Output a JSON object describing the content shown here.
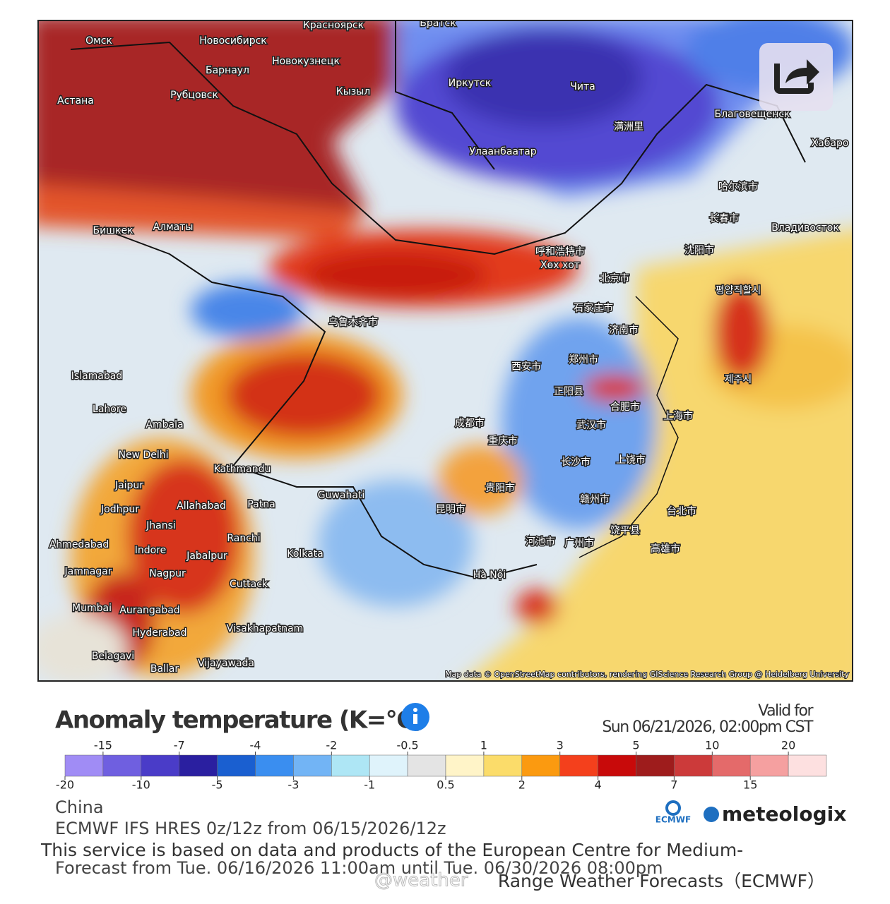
{
  "map": {
    "attribution": "Map data © OpenStreetMap contributors, rendering GIScience Research Group @ Heidelberg University",
    "places": [
      "Омск",
      "Новосибирск",
      "Красноярск",
      "Барнаул",
      "Новокузнецк",
      "Братск",
      "Астана",
      "Рубцовск",
      "Кызыл",
      "Иркутск",
      "Чита",
      "Благовещенск",
      "Улаанбаатар",
      "满洲里",
      "Хабаро",
      "哈尔滨市",
      "长春市",
      "Владивосток",
      "Бишкек",
      "Алматы",
      "呼和浩特市",
      "Хөх хот",
      "沈阳市",
      "北京市",
      "평양직할시",
      "乌鲁木齐市",
      "石家庄市",
      "济南市",
      "西安市",
      "郑州市",
      "Islamabad",
      "正阳县",
      "合肥市",
      "上海市",
      "Lahore",
      "Ambala",
      "成都市",
      "重庆市",
      "武汉市",
      "New Delhi",
      "Kathmandu",
      "长沙市",
      "上饶市",
      "Jaipur",
      "贵阳市",
      "Guwahati",
      "Jodhpur",
      "Allahabad",
      "Patna",
      "昆明市",
      "赣州市",
      "台北市",
      "Jhansi",
      "Ranchi",
      "Ahmedabad",
      "Indore",
      "河池市",
      "广州市",
      "饶平县",
      "高雄市",
      "Jabalpur",
      "Kolkata",
      "Jamnagar",
      "Nagpur",
      "Hà Nội",
      "Cuttack",
      "Mumbai",
      "Aurangabad",
      "Hyderabad",
      "Visakhapatnam",
      "Belagavi",
      "Vijayawada",
      "Ballar",
      "제주시"
    ]
  },
  "legend": {
    "title": "Anomaly temperature (K=°C)",
    "valid_label": "Valid for",
    "valid_time": "Sun 06/21/2026, 02:00pm CST",
    "edges": [
      -20,
      -15,
      -10,
      -7,
      -5,
      -4,
      -3,
      -2,
      -1,
      -0.5,
      0.5,
      1,
      2,
      3,
      4,
      5,
      7,
      10,
      15,
      20
    ],
    "colors": [
      "#a08cf5",
      "#6f5fe0",
      "#4a3cc8",
      "#2a1fa0",
      "#1a5fd0",
      "#3a8ef0",
      "#72b4f5",
      "#aee6f5",
      "#dff3fb",
      "#e4e4e4",
      "#fff4c8",
      "#fbdc6a",
      "#fb9a10",
      "#f4401c",
      "#c80a0a",
      "#9e1c1c",
      "#cc3a3a",
      "#e46a6a",
      "#f5a0a0",
      "#fde0e0"
    ]
  },
  "footer": {
    "region": "China",
    "model": "ECMWF IFS HRES 0z/12z from 06/15/2026/12z",
    "service": "This service is based on data and products of the European Centre for Medium-",
    "forecast": "Forecast from Tue. 06/16/2026 11:00am until Tue. 06/30/2026 08:00pm",
    "service_end": "Range Weather Forecasts（ECMWF）",
    "watermark": "@weather",
    "logo_ecmwf": "ECMWF",
    "logo_meteologix": "meteologix"
  }
}
